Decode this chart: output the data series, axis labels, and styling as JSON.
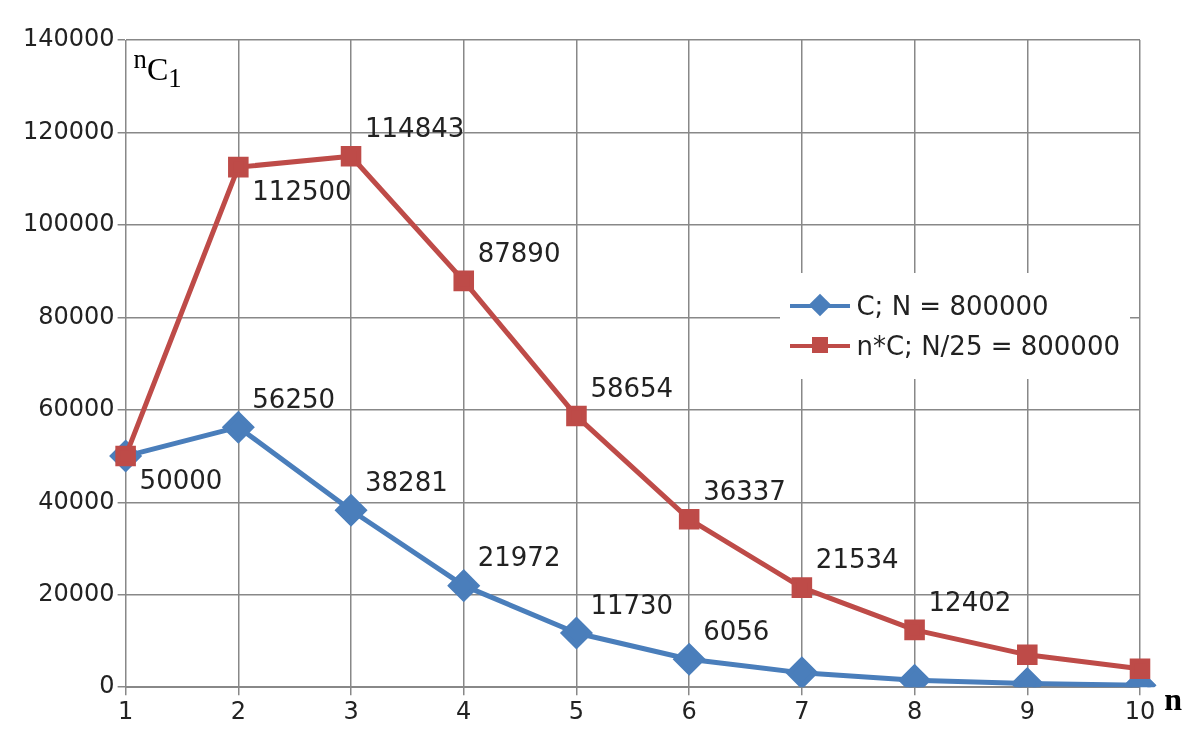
{
  "chart_data": {
    "type": "line",
    "xlabel": "n",
    "ylabel": "$^{n}$C$_{1}$",
    "categories": [
      "1",
      "2",
      "3",
      "4",
      "5",
      "6",
      "7",
      "8",
      "9",
      "10"
    ],
    "series": [
      {
        "name": "C; N = 800000",
        "color": "#4a7ebb",
        "marker": "diamond",
        "values": [
          50000,
          56250,
          38281,
          21972,
          11730,
          6056,
          3100,
          1500,
          800,
          400
        ],
        "value_labels": [
          "50000",
          "56250",
          "38281",
          "21972",
          "11730",
          "6056",
          null,
          null,
          null,
          null
        ]
      },
      {
        "name": "n*C; N/25 = 800000",
        "color": "#be4b48",
        "marker": "square",
        "values": [
          50000,
          112500,
          114843,
          87890,
          58654,
          36337,
          21534,
          12402,
          7000,
          4000
        ],
        "value_labels": [
          null,
          "112500",
          "114843",
          "87890",
          "58654",
          "36337",
          "21534",
          "12402",
          null,
          null
        ]
      }
    ],
    "ylim": [
      0,
      140000
    ],
    "yticks": [
      0,
      20000,
      40000,
      60000,
      80000,
      100000,
      120000,
      140000
    ],
    "grid": true,
    "legend": "right"
  }
}
